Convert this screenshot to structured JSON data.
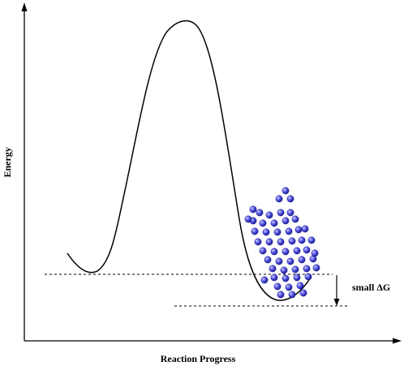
{
  "diagram": {
    "x_axis_label": "Reaction Progress",
    "y_axis_label": "Energy",
    "delta_label": "small ΔG"
  },
  "colors": {
    "ink": "#000000",
    "sphere_light": "#c8c8ff",
    "sphere_mid": "#5050e0",
    "sphere_dark": "#1a1a90"
  },
  "molecules": {
    "count": 53
  }
}
